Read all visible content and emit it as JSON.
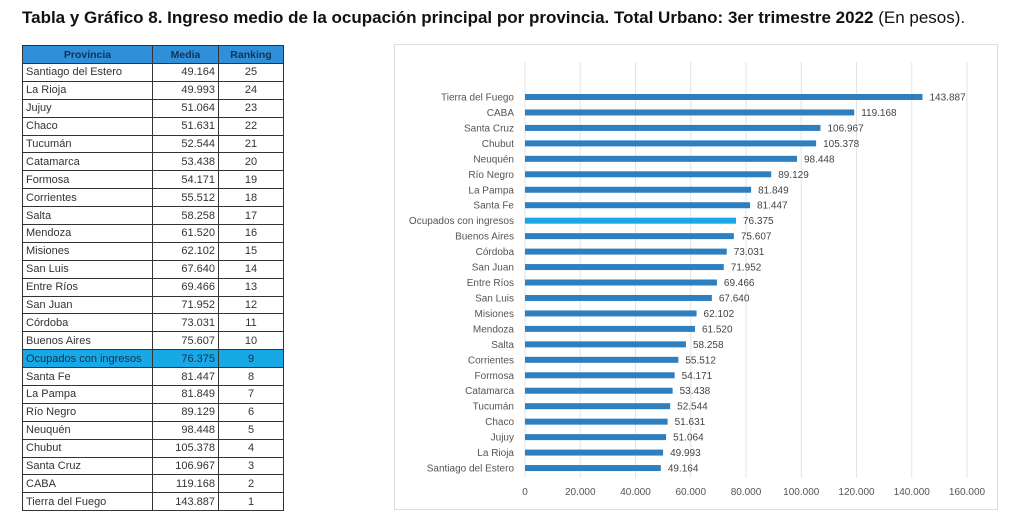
{
  "title_bold": "Tabla y Gráfico 8. Ingreso medio de la ocupación principal por provincia. Total Urbano: 3er trimestre 2022",
  "title_normal": " (En pesos).",
  "colors": {
    "bar": "#2e7fc0",
    "highlight": "#17a9e6",
    "header": "#2f8fd8"
  },
  "table": {
    "headers": [
      "Provincia",
      "Media",
      "Ranking"
    ],
    "highlight_row": "Ocupados con ingresos",
    "rows": [
      [
        "Santiago del Estero",
        "49.164",
        "25"
      ],
      [
        "La Rioja",
        "49.993",
        "24"
      ],
      [
        "Jujuy",
        "51.064",
        "23"
      ],
      [
        "Chaco",
        "51.631",
        "22"
      ],
      [
        "Tucumán",
        "52.544",
        "21"
      ],
      [
        "Catamarca",
        "53.438",
        "20"
      ],
      [
        "Formosa",
        "54.171",
        "19"
      ],
      [
        "Corrientes",
        "55.512",
        "18"
      ],
      [
        "Salta",
        "58.258",
        "17"
      ],
      [
        "Mendoza",
        "61.520",
        "16"
      ],
      [
        "Misiones",
        "62.102",
        "15"
      ],
      [
        "San Luis",
        "67.640",
        "14"
      ],
      [
        "Entre Ríos",
        "69.466",
        "13"
      ],
      [
        "San Juan",
        "71.952",
        "12"
      ],
      [
        "Córdoba",
        "73.031",
        "11"
      ],
      [
        "Buenos Aires",
        "75.607",
        "10"
      ],
      [
        "Ocupados con ingresos",
        "76.375",
        "9"
      ],
      [
        "Santa Fe",
        "81.447",
        "8"
      ],
      [
        "La Pampa",
        "81.849",
        "7"
      ],
      [
        "Río Negro",
        "89.129",
        "6"
      ],
      [
        "Neuquén",
        "98.448",
        "5"
      ],
      [
        "Chubut",
        "105.378",
        "4"
      ],
      [
        "Santa Cruz",
        "106.967",
        "3"
      ],
      [
        "CABA",
        "119.168",
        "2"
      ],
      [
        "Tierra del Fuego",
        "143.887",
        "1"
      ]
    ]
  },
  "chart_data": {
    "type": "bar",
    "orientation": "horizontal",
    "categories": [
      "Tierra del Fuego",
      "CABA",
      "Santa Cruz",
      "Chubut",
      "Neuquén",
      "Río Negro",
      "La Pampa",
      "Santa Fe",
      "Ocupados con ingresos",
      "Buenos Aires",
      "Córdoba",
      "San Juan",
      "Entre Ríos",
      "San Luis",
      "Misiones",
      "Mendoza",
      "Salta",
      "Corrientes",
      "Formosa",
      "Catamarca",
      "Tucumán",
      "Chaco",
      "Jujuy",
      "La Rioja",
      "Santiago del Estero"
    ],
    "values": [
      143887,
      119168,
      106967,
      105378,
      98448,
      89129,
      81849,
      81447,
      76375,
      75607,
      73031,
      71952,
      69466,
      67640,
      62102,
      61520,
      58258,
      55512,
      54171,
      53438,
      52544,
      51631,
      51064,
      49993,
      49164
    ],
    "labels": [
      "143.887",
      "119.168",
      "106.967",
      "105.378",
      "98.448",
      "89.129",
      "81.849",
      "81.447",
      "76.375",
      "75.607",
      "73.031",
      "71.952",
      "69.466",
      "67.640",
      "62.102",
      "61.520",
      "58.258",
      "55.512",
      "54.171",
      "53.438",
      "52.544",
      "51.631",
      "51.064",
      "49.993",
      "49.164"
    ],
    "highlight": "Ocupados con ingresos",
    "xlim": [
      0,
      160000
    ],
    "xticks": [
      "0",
      "20.000",
      "40.000",
      "60.000",
      "80.000",
      "100.000",
      "120.000",
      "140.000",
      "160.000"
    ],
    "grid": "vertical"
  }
}
